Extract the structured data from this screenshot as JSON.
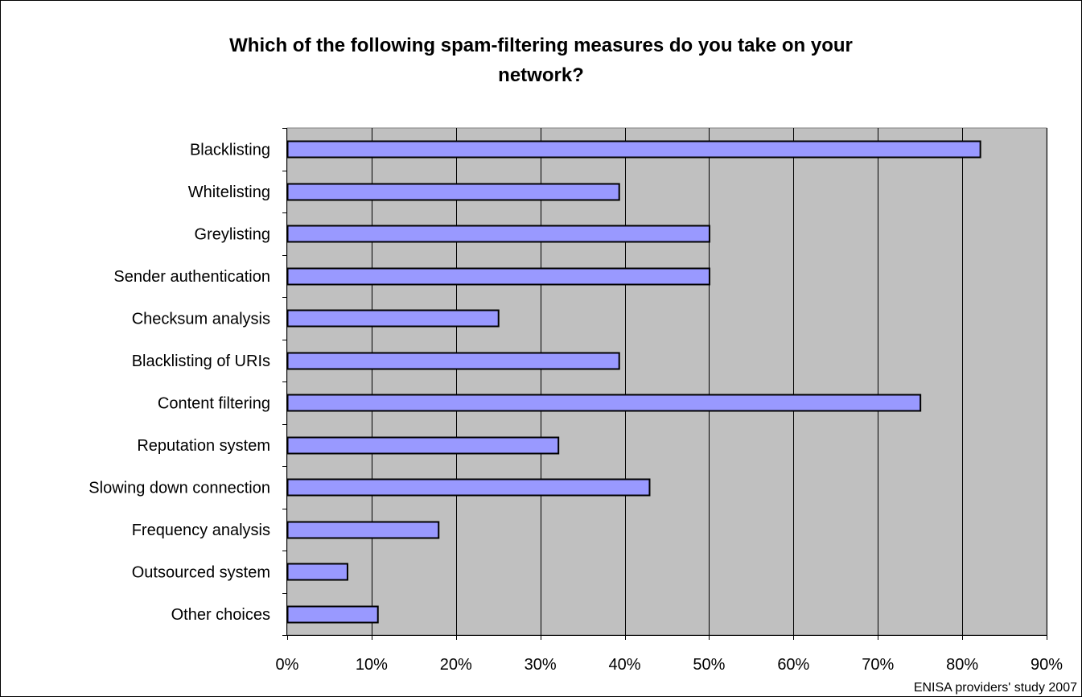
{
  "chart_data": {
    "type": "bar",
    "orientation": "horizontal",
    "title_lines": [
      "Which of the following spam-filtering measures do you take on your",
      "network?"
    ],
    "source": "ENISA providers' study 2007",
    "categories": [
      "Blacklisting",
      "Whitelisting",
      "Greylisting",
      "Sender authentication",
      "Checksum analysis",
      "Blacklisting of URIs",
      "Content filtering",
      "Reputation system",
      "Slowing down connection",
      "Frequency analysis",
      "Outsourced system",
      "Other choices"
    ],
    "values": [
      82.1,
      39.3,
      50.0,
      50.0,
      25.0,
      39.3,
      75.0,
      32.1,
      42.9,
      17.9,
      7.1,
      10.7
    ],
    "value_unit": "%",
    "xlim": [
      0,
      90
    ],
    "x_ticks": [
      "0%",
      "10%",
      "20%",
      "30%",
      "40%",
      "50%",
      "60%",
      "70%",
      "80%",
      "90%"
    ],
    "grid": "vertical",
    "colors": {
      "bar_fill": "#9999ff",
      "bar_stroke": "#000000",
      "plot_background": "#c0c0c0",
      "gridline": "#000000"
    }
  }
}
